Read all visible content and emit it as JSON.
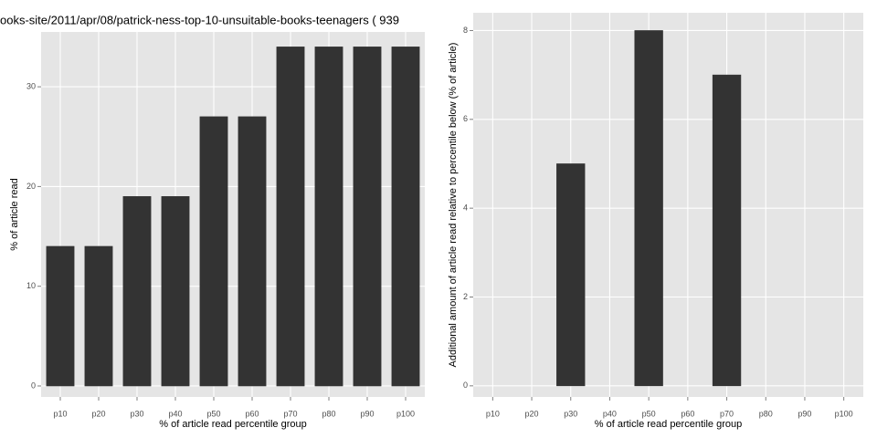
{
  "chart_data": [
    {
      "type": "bar",
      "title": "ooks-site/2011/apr/08/patrick-ness-top-10-unsuitable-books-teenagers ( 939",
      "x_label": "% of article read percentile group",
      "y_label": "% of article read",
      "categories": [
        "p10",
        "p20",
        "p30",
        "p40",
        "p50",
        "p60",
        "p70",
        "p80",
        "p90",
        "p100"
      ],
      "values": [
        14,
        14,
        19,
        19,
        27,
        27,
        34,
        34,
        34,
        34
      ],
      "color": "#333333",
      "ylim": [
        -1.1,
        35.5
      ],
      "yticks": [
        0,
        10,
        20,
        30
      ],
      "grid": true
    },
    {
      "type": "bar",
      "x_label": "% of article read percentile group",
      "y_label": "Additional amount of article read relative to percentile below (% of article)",
      "categories": [
        "p10",
        "p20",
        "p30",
        "p40",
        "p50",
        "p60",
        "p70",
        "p80",
        "p90",
        "p100"
      ],
      "values": [
        0,
        0,
        5,
        0,
        8,
        0,
        7,
        0,
        0,
        0
      ],
      "color": "#333333",
      "ylim": [
        -0.25,
        8.4
      ],
      "yticks": [
        0,
        2,
        4,
        6,
        8
      ],
      "grid": true
    }
  ]
}
